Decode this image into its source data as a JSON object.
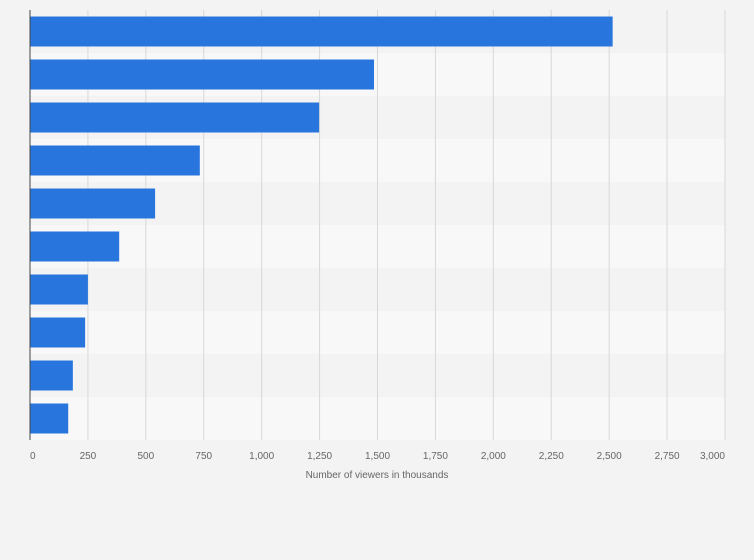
{
  "chart_data": {
    "type": "bar",
    "orientation": "horizontal",
    "title": "",
    "xlabel": "Number of viewers in thousands",
    "ylabel": "",
    "xlim": [
      0,
      3000
    ],
    "ticks": [
      0,
      250,
      500,
      750,
      1000,
      1250,
      1500,
      1750,
      2000,
      2250,
      2500,
      2750,
      3000
    ],
    "tick_labels": [
      "0",
      "250",
      "500",
      "750",
      "1,000",
      "1,250",
      "1,500",
      "1,750",
      "2,000",
      "2,250",
      "2,500",
      "2,750",
      "3,000"
    ],
    "categories": [
      "",
      "",
      "",
      "",
      "",
      "",
      "",
      "",
      "",
      ""
    ],
    "values": [
      2515,
      1485,
      1248,
      733,
      540,
      385,
      250,
      238,
      185,
      165
    ],
    "grid": true,
    "colors": {
      "bar": "#2876dd",
      "band_dark": "#f3f3f4",
      "band_light": "#f8f8f9",
      "grid": "#d8d8d8",
      "axis": "#444444",
      "text": "#666666"
    }
  }
}
